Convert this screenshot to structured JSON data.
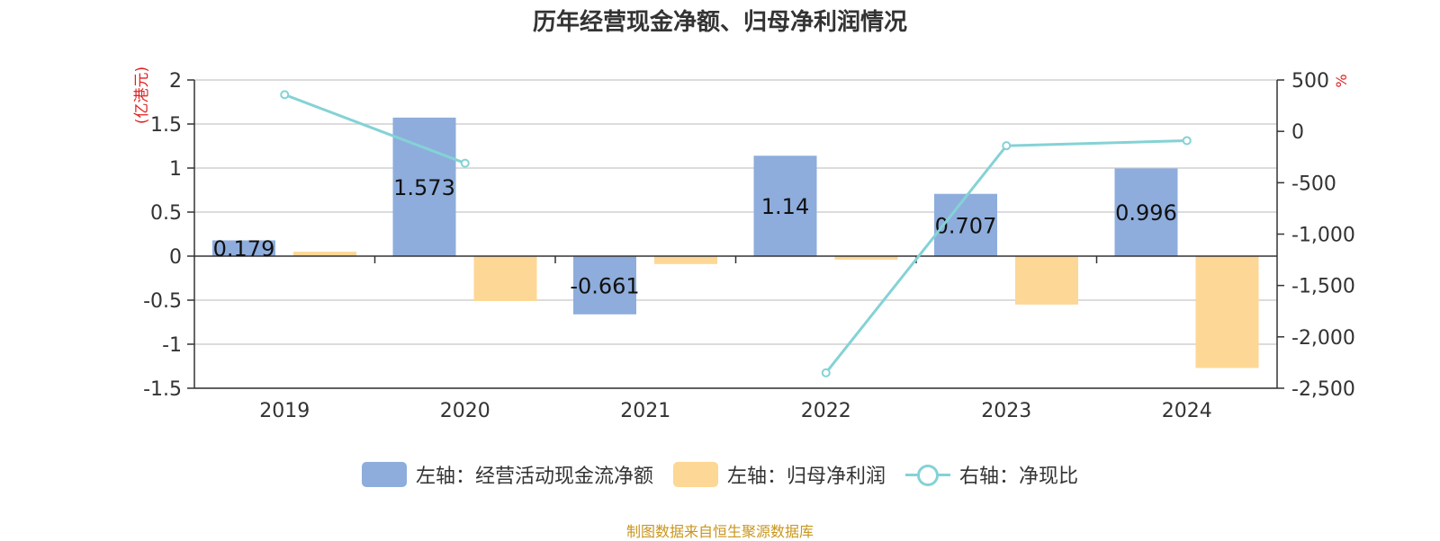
{
  "title": "历年经营现金净额、归母净利润情况",
  "source": "制图数据来自恒生聚源数据库",
  "colors": {
    "cash": "#8EADDC",
    "profit": "#FDD795",
    "ratio": "#84D2D6",
    "axis_unit": "#E02020"
  },
  "legend": {
    "cash": "左轴：经营活动现金流净额",
    "profit": "左轴：归母净利润",
    "ratio": "右轴：净现比"
  },
  "chart_data": {
    "type": "bar",
    "title": "历年经营现金净额、归母净利润情况",
    "categories": [
      "2019",
      "2020",
      "2021",
      "2022",
      "2023",
      "2024"
    ],
    "left_axis": {
      "unit": "(亿港元)",
      "ylim": [
        -1.5,
        2
      ],
      "ticks": [
        2,
        1.5,
        1,
        0.5,
        0,
        -0.5,
        -1,
        -1.5
      ]
    },
    "right_axis": {
      "unit": "%",
      "ylim": [
        -2500,
        500
      ],
      "ticks": [
        "500",
        "0",
        "-500",
        "-1,000",
        "-1,500",
        "-2,000",
        "-2,500"
      ]
    },
    "series": [
      {
        "name": "左轴：经营活动现金流净额",
        "type": "bar",
        "axis": "left",
        "values": [
          0.179,
          1.573,
          -0.661,
          1.14,
          0.707,
          0.996
        ],
        "labels": [
          "0.179",
          "1.573",
          "-0.661",
          "1.14",
          "0.707",
          "0.996"
        ]
      },
      {
        "name": "左轴：归母净利润",
        "type": "bar",
        "axis": "left",
        "values": [
          0.05,
          -0.51,
          -0.09,
          -0.04,
          -0.55,
          -1.27
        ]
      },
      {
        "name": "右轴：净现比",
        "type": "line",
        "axis": "right",
        "values": [
          357,
          -310,
          null,
          -2350,
          -140,
          -90
        ]
      }
    ],
    "grid": true,
    "legend_position": "bottom"
  }
}
